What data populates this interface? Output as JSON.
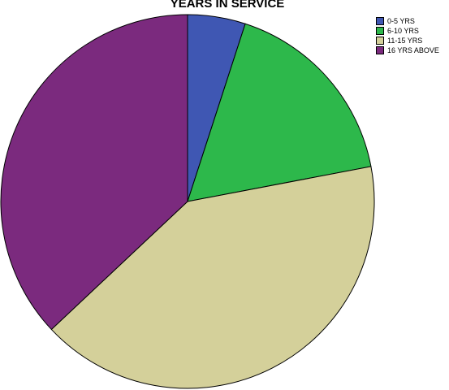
{
  "chart_data": {
    "type": "pie",
    "title": "YEARS IN SERVICE",
    "categories": [
      "0-5 YRS",
      "6-10 YRS",
      "11-15 YRS",
      "16 YRS ABOVE"
    ],
    "values": [
      5,
      17,
      41,
      37
    ],
    "unit": "percent",
    "colors": [
      "#3F57B3",
      "#2DB84B",
      "#D4D09A",
      "#7B2A7E"
    ],
    "legend_position": "top-right",
    "start_angle_deg": 0,
    "direction": "clockwise"
  }
}
